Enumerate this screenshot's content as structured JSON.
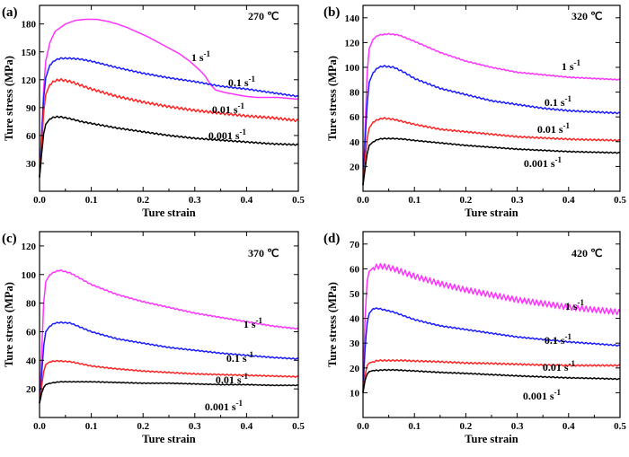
{
  "chart_data": [
    {
      "type": "line",
      "panel_label": "(a)",
      "temperature": "270 ℃",
      "xlabel": "Ture strain",
      "ylabel": "Ture stress (MPa)",
      "xlim": [
        0,
        0.5
      ],
      "ylim": [
        0,
        200
      ],
      "xticks": [
        0.0,
        0.1,
        0.2,
        0.3,
        0.4,
        0.5
      ],
      "yticks": [
        30,
        60,
        90,
        120,
        150,
        180
      ],
      "grid": false,
      "series": [
        {
          "name": "1 s-1",
          "color": "#ff33ff",
          "serration": 0,
          "x": [
            0,
            0.004,
            0.008,
            0.012,
            0.02,
            0.03,
            0.05,
            0.07,
            0.09,
            0.11,
            0.13,
            0.15,
            0.17,
            0.19,
            0.21,
            0.23,
            0.25,
            0.27,
            0.29,
            0.3,
            0.31,
            0.32,
            0.33,
            0.34,
            0.36,
            0.38,
            0.4,
            0.42,
            0.44,
            0.46,
            0.48,
            0.5
          ],
          "y": [
            15,
            60,
            110,
            140,
            160,
            172,
            180,
            184,
            185,
            185,
            183,
            180,
            176,
            171,
            166,
            160,
            154,
            148,
            140,
            135,
            130,
            124,
            115,
            109,
            106,
            104,
            102,
            101,
            101,
            101,
            100,
            99
          ]
        },
        {
          "name": "0.1 s-1",
          "color": "#1a1aff",
          "serration": 1.5,
          "x": [
            0,
            0.004,
            0.008,
            0.012,
            0.02,
            0.03,
            0.04,
            0.06,
            0.08,
            0.1,
            0.15,
            0.2,
            0.25,
            0.3,
            0.35,
            0.4,
            0.45,
            0.5
          ],
          "y": [
            15,
            60,
            100,
            122,
            136,
            141,
            143,
            143,
            142,
            140,
            133,
            127,
            122,
            118,
            113,
            110,
            106,
            102
          ]
        },
        {
          "name": "0.01 s-1",
          "color": "#ff2222",
          "serration": 2.5,
          "x": [
            0,
            0.004,
            0.008,
            0.012,
            0.02,
            0.03,
            0.04,
            0.06,
            0.08,
            0.1,
            0.15,
            0.2,
            0.25,
            0.3,
            0.35,
            0.4,
            0.45,
            0.5
          ],
          "y": [
            15,
            50,
            85,
            104,
            115,
            119,
            120,
            118,
            114,
            110,
            102,
            96,
            91,
            87,
            84,
            81,
            79,
            76
          ]
        },
        {
          "name": "0.001 s-1",
          "color": "#000000",
          "serration": 1.5,
          "x": [
            0,
            0.004,
            0.008,
            0.012,
            0.02,
            0.03,
            0.04,
            0.06,
            0.08,
            0.1,
            0.15,
            0.2,
            0.25,
            0.3,
            0.35,
            0.4,
            0.45,
            0.5
          ],
          "y": [
            15,
            40,
            62,
            72,
            78,
            80,
            80,
            78,
            75,
            73,
            68,
            64,
            60,
            57,
            55,
            53,
            51,
            50
          ]
        }
      ]
    },
    {
      "type": "line",
      "panel_label": "(b)",
      "temperature": "320 ℃",
      "xlabel": "Ture strain",
      "ylabel": "Ture stress (MPa)",
      "xlim": [
        0,
        0.5
      ],
      "ylim": [
        0,
        150
      ],
      "xticks": [
        0.0,
        0.1,
        0.2,
        0.3,
        0.4,
        0.5
      ],
      "yticks": [
        20,
        40,
        60,
        80,
        100,
        120,
        140
      ],
      "grid": false,
      "series": [
        {
          "name": "1 s-1",
          "color": "#ff33ff",
          "serration": 0.8,
          "x": [
            0,
            0.004,
            0.008,
            0.012,
            0.02,
            0.03,
            0.05,
            0.07,
            0.1,
            0.15,
            0.2,
            0.25,
            0.3,
            0.35,
            0.4,
            0.45,
            0.5
          ],
          "y": [
            5,
            50,
            95,
            115,
            123,
            126,
            127,
            126,
            121,
            112,
            105,
            100,
            96,
            94,
            92,
            91,
            90
          ]
        },
        {
          "name": "0.1 s-1",
          "color": "#1a1aff",
          "serration": 1.2,
          "x": [
            0,
            0.004,
            0.008,
            0.012,
            0.02,
            0.03,
            0.04,
            0.06,
            0.08,
            0.1,
            0.15,
            0.2,
            0.25,
            0.3,
            0.35,
            0.4,
            0.45,
            0.5
          ],
          "y": [
            5,
            40,
            70,
            88,
            96,
            100,
            101,
            100,
            96,
            91,
            83,
            78,
            73,
            70,
            67,
            65,
            64,
            63
          ]
        },
        {
          "name": "0.01 s-1",
          "color": "#ff2222",
          "serration": 1.2,
          "x": [
            0,
            0.004,
            0.008,
            0.012,
            0.02,
            0.03,
            0.04,
            0.06,
            0.08,
            0.1,
            0.15,
            0.2,
            0.25,
            0.3,
            0.35,
            0.4,
            0.45,
            0.5
          ],
          "y": [
            5,
            25,
            42,
            51,
            56,
            58,
            59,
            58,
            56,
            54,
            50,
            48,
            46,
            44,
            43,
            42,
            41.5,
            41
          ]
        },
        {
          "name": "0.001 s-1",
          "color": "#000000",
          "serration": 0.8,
          "x": [
            0,
            0.004,
            0.008,
            0.012,
            0.02,
            0.03,
            0.04,
            0.06,
            0.08,
            0.1,
            0.15,
            0.2,
            0.25,
            0.3,
            0.35,
            0.4,
            0.45,
            0.5
          ],
          "y": [
            5,
            18,
            30,
            37,
            40,
            42,
            42.5,
            42.5,
            42,
            41,
            39,
            37,
            35.5,
            34,
            33,
            32,
            31.5,
            31
          ]
        }
      ]
    },
    {
      "type": "line",
      "panel_label": "(c)",
      "temperature": "370 ℃",
      "xlabel": "Ture strain",
      "ylabel": "Ture stress (MPa)",
      "xlim": [
        0,
        0.5
      ],
      "ylim": [
        0,
        130
      ],
      "xticks": [
        0.0,
        0.1,
        0.2,
        0.3,
        0.4,
        0.5
      ],
      "yticks": [
        20,
        40,
        60,
        80,
        100,
        120
      ],
      "grid": false,
      "series": [
        {
          "name": "1 s-1",
          "color": "#ff33ff",
          "serration": 0.8,
          "x": [
            0,
            0.004,
            0.008,
            0.012,
            0.02,
            0.03,
            0.04,
            0.06,
            0.08,
            0.1,
            0.15,
            0.2,
            0.25,
            0.3,
            0.35,
            0.4,
            0.45,
            0.5
          ],
          "y": [
            10,
            45,
            80,
            95,
            100,
            102,
            103,
            101,
            97,
            93,
            86,
            81,
            77,
            73,
            70,
            67,
            64,
            62
          ]
        },
        {
          "name": "0.1 s-1",
          "color": "#1a1aff",
          "serration": 0.8,
          "x": [
            0,
            0.004,
            0.008,
            0.012,
            0.02,
            0.03,
            0.04,
            0.06,
            0.08,
            0.1,
            0.15,
            0.2,
            0.25,
            0.3,
            0.35,
            0.4,
            0.45,
            0.5
          ],
          "y": [
            10,
            30,
            50,
            60,
            64,
            66,
            66.5,
            66,
            63,
            60,
            55,
            52,
            49,
            47,
            45,
            43.5,
            42,
            41
          ]
        },
        {
          "name": "0.01 s-1",
          "color": "#ff2222",
          "serration": 0.8,
          "x": [
            0,
            0.004,
            0.008,
            0.012,
            0.02,
            0.03,
            0.04,
            0.06,
            0.08,
            0.1,
            0.15,
            0.2,
            0.25,
            0.3,
            0.35,
            0.4,
            0.45,
            0.5
          ],
          "y": [
            10,
            22,
            32,
            37,
            39,
            39.5,
            39.5,
            39,
            37.5,
            36,
            34,
            32.5,
            31.5,
            30.5,
            30,
            29.5,
            29,
            28.5
          ]
        },
        {
          "name": "0.001 s-1",
          "color": "#000000",
          "serration": 0.5,
          "x": [
            0,
            0.004,
            0.008,
            0.012,
            0.02,
            0.03,
            0.04,
            0.06,
            0.08,
            0.1,
            0.15,
            0.2,
            0.25,
            0.3,
            0.35,
            0.4,
            0.45,
            0.5
          ],
          "y": [
            10,
            17,
            21,
            23,
            24,
            24.5,
            25,
            25,
            25,
            25,
            24.5,
            24,
            24,
            23.5,
            23,
            23,
            22.5,
            22.5
          ]
        }
      ]
    },
    {
      "type": "line",
      "panel_label": "(d)",
      "temperature": "420 ℃",
      "xlabel": "Ture strain",
      "ylabel": "Ture stress (MPa)",
      "xlim": [
        0,
        0.5
      ],
      "ylim": [
        0,
        75
      ],
      "xticks": [
        0.0,
        0.1,
        0.2,
        0.3,
        0.4,
        0.5
      ],
      "yticks": [
        10,
        20,
        30,
        40,
        50,
        60,
        70
      ],
      "grid": false,
      "series": [
        {
          "name": "1 s-1",
          "color": "#ff33ff",
          "serration": 2.2,
          "x": [
            0,
            0.004,
            0.008,
            0.012,
            0.02,
            0.03,
            0.04,
            0.06,
            0.08,
            0.1,
            0.15,
            0.2,
            0.25,
            0.3,
            0.35,
            0.4,
            0.45,
            0.5
          ],
          "y": [
            10,
            40,
            55,
            59,
            60.5,
            61,
            61,
            60,
            58.5,
            57,
            54,
            51.5,
            49.5,
            47.5,
            46,
            44.5,
            43.5,
            42.5
          ]
        },
        {
          "name": "0.1 s-1",
          "color": "#1a1aff",
          "serration": 0.5,
          "x": [
            0,
            0.004,
            0.008,
            0.012,
            0.02,
            0.03,
            0.04,
            0.06,
            0.08,
            0.1,
            0.15,
            0.2,
            0.25,
            0.3,
            0.35,
            0.4,
            0.45,
            0.5
          ],
          "y": [
            10,
            28,
            38,
            42,
            44,
            44,
            43.5,
            42.5,
            41,
            39.5,
            37,
            35.5,
            34,
            32.5,
            31.5,
            30.5,
            29.8,
            29
          ]
        },
        {
          "name": "0.01 s-1",
          "color": "#ff2222",
          "serration": 0.6,
          "x": [
            0,
            0.004,
            0.008,
            0.012,
            0.02,
            0.03,
            0.04,
            0.06,
            0.08,
            0.1,
            0.15,
            0.2,
            0.25,
            0.3,
            0.35,
            0.4,
            0.45,
            0.5
          ],
          "y": [
            10,
            17,
            21,
            22,
            22.5,
            23,
            23,
            23,
            23,
            22.8,
            22.5,
            22,
            21.8,
            21.5,
            21.2,
            21,
            21,
            21
          ]
        },
        {
          "name": "0.001 s-1",
          "color": "#000000",
          "serration": 0.4,
          "x": [
            0,
            0.004,
            0.008,
            0.012,
            0.02,
            0.03,
            0.04,
            0.06,
            0.08,
            0.1,
            0.15,
            0.2,
            0.25,
            0.3,
            0.35,
            0.4,
            0.45,
            0.5
          ],
          "y": [
            10,
            15,
            17.5,
            18.5,
            19,
            19,
            19.2,
            19.2,
            19,
            18.8,
            18.2,
            17.8,
            17.3,
            16.8,
            16.4,
            16,
            15.8,
            15.5
          ]
        }
      ]
    }
  ]
}
